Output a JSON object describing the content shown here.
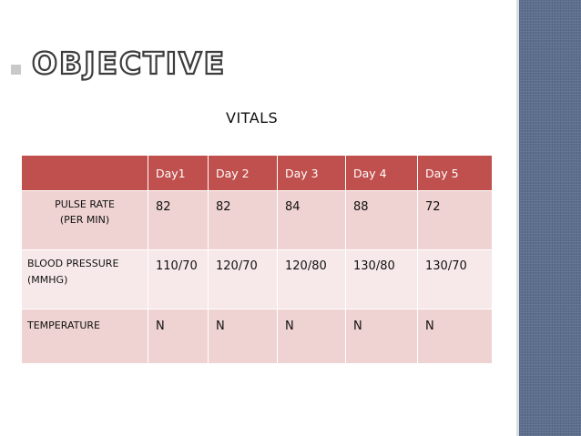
{
  "slide": {
    "title": "Objective",
    "subtitle": "VITALS"
  },
  "table": {
    "headers": [
      "",
      "Day1",
      "Day 2",
      "Day 3",
      "Day 4",
      "Day 5"
    ],
    "rows": [
      {
        "label_line1": "PULSE RATE",
        "label_line2": "(PER MIN)",
        "values": [
          "82",
          "82",
          "84",
          "88",
          "72"
        ]
      },
      {
        "label_line1": "BLOOD PRESSURE",
        "label_line2": "(MMHG)",
        "values": [
          "110/70",
          "120/70",
          "120/80",
          "130/80",
          "130/70"
        ]
      },
      {
        "label_line1": "TEMPERATURE",
        "label_line2": "",
        "values": [
          "N",
          "N",
          "N",
          "N",
          "N"
        ]
      }
    ]
  },
  "colors": {
    "header_bg": "#c0504d",
    "row_odd_bg": "#efd3d2",
    "row_even_bg": "#f7e9e9",
    "sidebar": "#5c6f8e"
  }
}
